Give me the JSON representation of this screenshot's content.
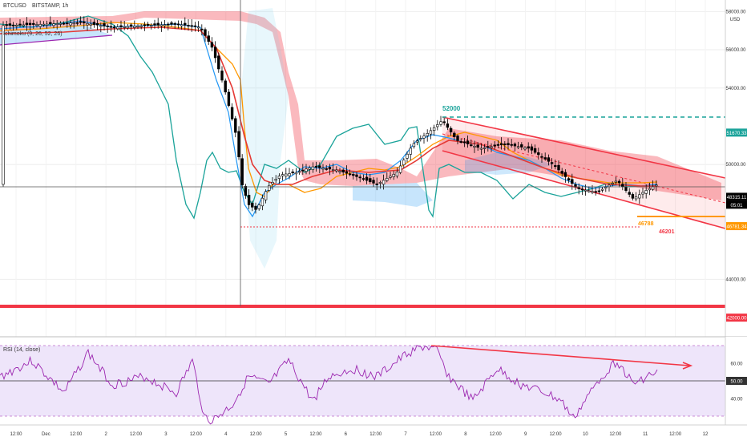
{
  "chart_data": {
    "type": "candlestick",
    "symbol": "BTCUSD",
    "ohlc_label": "BITSTAMP, 1h",
    "legend_line": "Ichimoku (9, 26, 52, 26)",
    "currency": "USD",
    "price_axis": {
      "ticks": [
        {
          "value": 58000,
          "label": "58000.00"
        },
        {
          "value": 56000,
          "label": "56000.00"
        },
        {
          "value": 54000,
          "label": "54000.00"
        },
        {
          "value": 50000,
          "label": "50000.00"
        },
        {
          "value": 44000,
          "label": "44000.00"
        }
      ],
      "ylim": [
        41000,
        58600
      ]
    },
    "price_tags": [
      {
        "value": 51670.33,
        "label": "51670.33",
        "color": "#1aa39a"
      },
      {
        "value": 48315.11,
        "label": "48315.11",
        "color": "#ffffff"
      },
      {
        "value": 47900,
        "label": "05:01",
        "color": "#ffffff"
      },
      {
        "value": 46781.34,
        "label": "46781.34",
        "color": "#ff9800"
      },
      {
        "value": 42000.0,
        "label": "42000.00",
        "color": "#f23645"
      }
    ],
    "time_axis": [
      "12:00",
      "Dec",
      "12:00",
      "2",
      "12:00",
      "3",
      "12:00",
      "4",
      "12:00",
      "5",
      "12:00",
      "6",
      "12:00",
      "7",
      "12:00",
      "8",
      "12:00",
      "9",
      "12:00",
      "10",
      "12:00",
      "11",
      "12:00",
      "12"
    ],
    "annotations": [
      {
        "text": "52000",
        "color": "#1aa39a"
      },
      {
        "text": "46788",
        "color": "#ff9800"
      },
      {
        "text": "46201",
        "color": "#f23645"
      }
    ],
    "rsi": {
      "label": "RSI (14, close)",
      "ticks": [
        {
          "value": 60,
          "label": "60.00"
        },
        {
          "value": 50,
          "label": "50.00"
        },
        {
          "value": 40,
          "label": "40.00"
        }
      ],
      "upper_band": 70,
      "lower_band": 30
    },
    "levels": {
      "support": 42000,
      "target_high": 51670.33,
      "low_dotted": 46201,
      "orange_level": 46781.34
    },
    "colors": {
      "candle_up": "#ffffff",
      "candle_down": "#000000",
      "cloud_red": "#f23645",
      "cloud_blue": "#2196f3",
      "channel": "#f23645",
      "kijun": "#ff9800",
      "tenkan": "#2196f3",
      "chikou": "#1aa39a",
      "rsi_line": "#9c27b0",
      "rsi_band": "#e8dcf8"
    },
    "grid": true
  }
}
